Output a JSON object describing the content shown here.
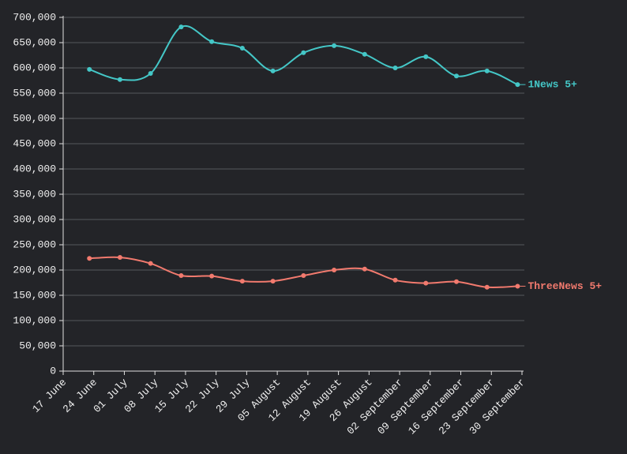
{
  "chart_data": {
    "type": "line",
    "x": [
      "06-23",
      "06-30",
      "07-07",
      "07-14",
      "07-21",
      "07-28",
      "08-04",
      "08-11",
      "08-18",
      "08-25",
      "09-01",
      "09-08",
      "09-15",
      "09-22",
      "09-29"
    ],
    "series": [
      {
        "name": "1News 5+",
        "color": "#44c7c7",
        "values": [
          597000,
          577000,
          589000,
          681000,
          652000,
          639000,
          594000,
          630000,
          644000,
          627000,
          600000,
          622000,
          584000,
          594000,
          567000
        ]
      },
      {
        "name": "ThreeNews 5+",
        "color": "#f27a6e",
        "values": [
          223000,
          225000,
          213000,
          189000,
          188000,
          178000,
          178000,
          189000,
          200000,
          202000,
          180000,
          174000,
          177000,
          166000,
          168000
        ]
      }
    ],
    "xlim": [
      "06-17",
      "09-30"
    ],
    "xticks": [
      {
        "value": "06-17",
        "label": "17 June"
      },
      {
        "value": "06-24",
        "label": "24 June"
      },
      {
        "value": "07-01",
        "label": "01 July"
      },
      {
        "value": "07-08",
        "label": "08 July"
      },
      {
        "value": "07-15",
        "label": "15 July"
      },
      {
        "value": "07-22",
        "label": "22 July"
      },
      {
        "value": "07-29",
        "label": "29 July"
      },
      {
        "value": "08-05",
        "label": "05 August"
      },
      {
        "value": "08-12",
        "label": "12 August"
      },
      {
        "value": "08-19",
        "label": "19 August"
      },
      {
        "value": "08-26",
        "label": "26 August"
      },
      {
        "value": "09-02",
        "label": "02 September"
      },
      {
        "value": "09-09",
        "label": "09 September"
      },
      {
        "value": "09-16",
        "label": "16 September"
      },
      {
        "value": "09-23",
        "label": "23 September"
      },
      {
        "value": "09-30",
        "label": "30 September"
      }
    ],
    "ylim": [
      0,
      700000
    ],
    "yticks": [
      0,
      {
        "value": 50000,
        "label": "50,000"
      },
      {
        "value": 100000,
        "label": "100,000"
      },
      {
        "value": 150000,
        "label": "150,000"
      },
      {
        "value": 200000,
        "label": "200,000"
      },
      {
        "value": 250000,
        "label": "250,000"
      },
      {
        "value": 300000,
        "label": "300,000"
      },
      {
        "value": 350000,
        "label": "350,000"
      },
      {
        "value": 400000,
        "label": "400,000"
      },
      {
        "value": 450000,
        "label": "450,000"
      },
      {
        "value": 500000,
        "label": "500,000"
      },
      {
        "value": 550000,
        "label": "550,000"
      },
      {
        "value": 600000,
        "label": "600,000"
      },
      {
        "value": 650000,
        "label": "650,000"
      },
      {
        "value": 700000,
        "label": "700,000"
      }
    ],
    "grid": true
  }
}
